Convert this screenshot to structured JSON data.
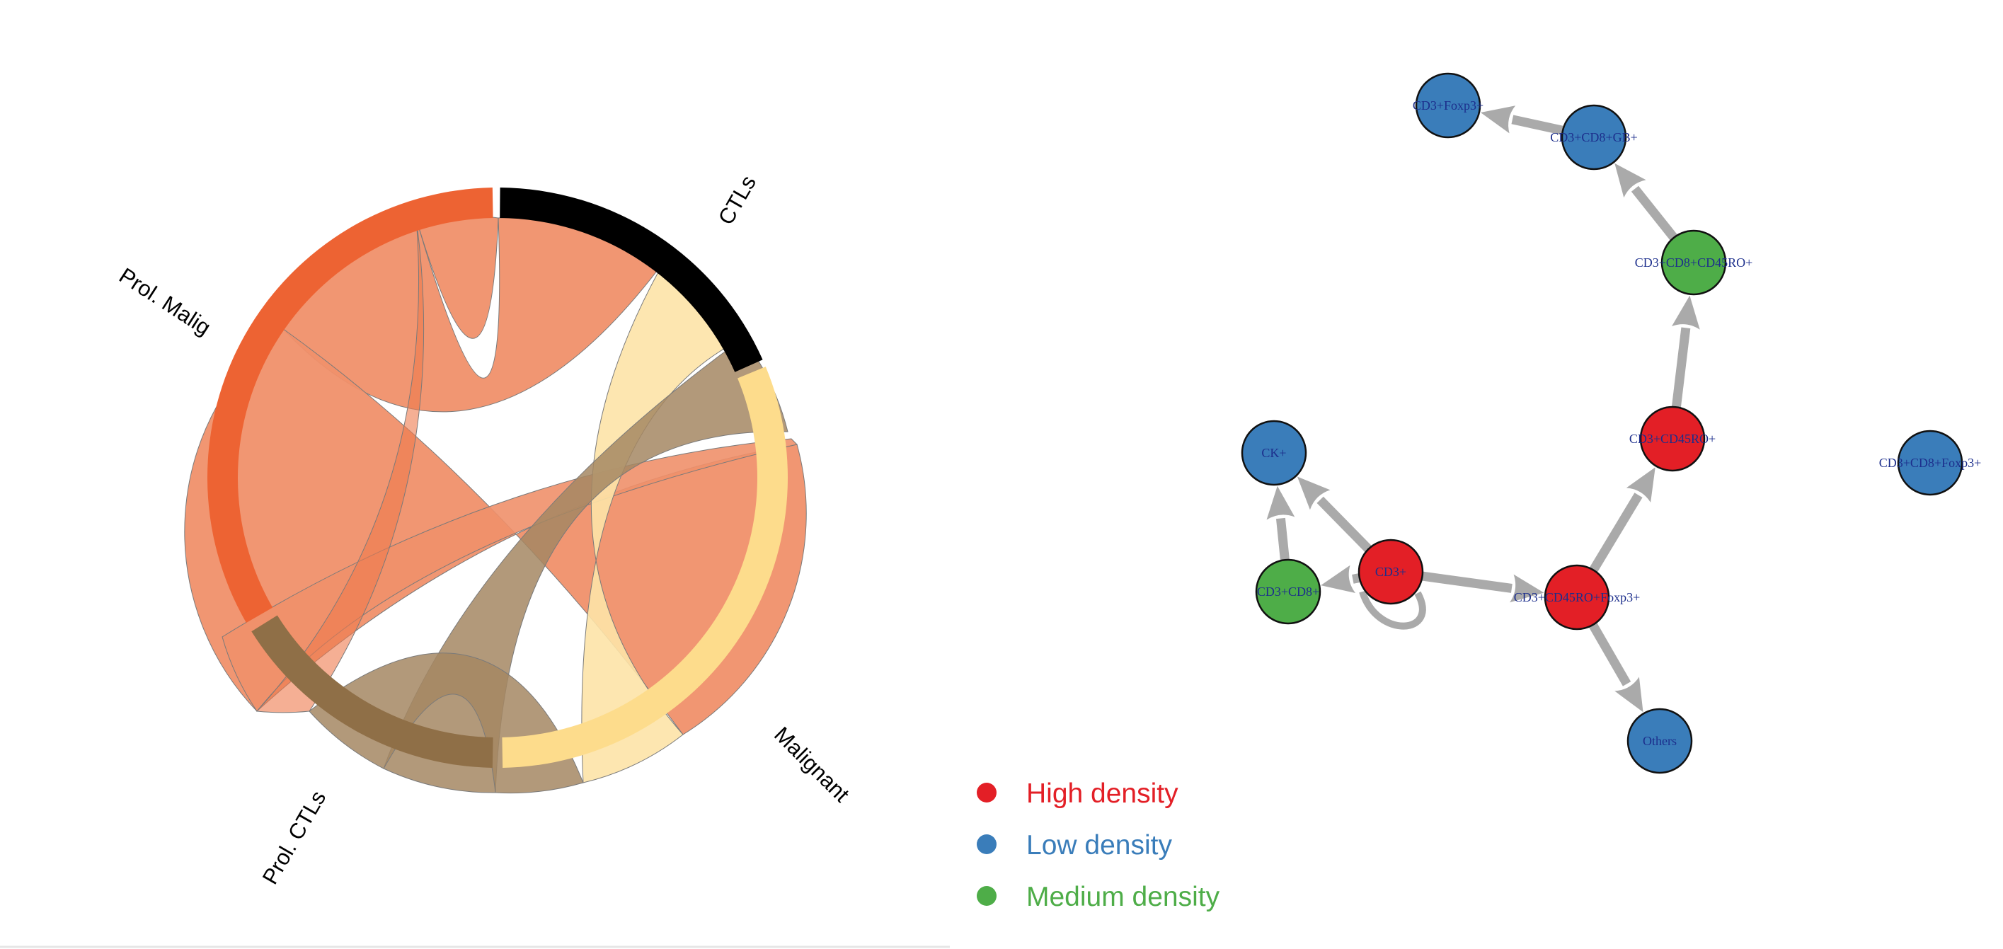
{
  "chord": {
    "groups": [
      {
        "id": "ctls",
        "label": "CTLs",
        "color": "#000000"
      },
      {
        "id": "malignant",
        "label": "Malignant",
        "color": "#fddc8c"
      },
      {
        "id": "prol_ctls",
        "label": "Prol. CTLs",
        "color": "#8f6f47"
      },
      {
        "id": "prol_malig",
        "label": "Prol. Malig",
        "color": "#ed6333"
      }
    ],
    "ribbon_colors": {
      "prol_malig": "#f0906a",
      "malignant": "#fde3a7",
      "prol_ctls": "#a48763"
    }
  },
  "network": {
    "density_colors": {
      "high": "#e31f26",
      "low": "#3a7dba",
      "medium": "#4ead48"
    },
    "nodes": [
      {
        "id": "cd3_foxp3",
        "label": "CD3+Foxp3+",
        "density": "low"
      },
      {
        "id": "cd3_cd8_gb",
        "label": "CD3+CD8+GB+",
        "density": "low"
      },
      {
        "id": "cd3_cd8_cd45ro",
        "label": "CD3+CD8+CD45RO+",
        "density": "medium"
      },
      {
        "id": "cd3_cd45ro",
        "label": "CD3+CD45RO+",
        "density": "high"
      },
      {
        "id": "ck",
        "label": "CK+",
        "density": "low"
      },
      {
        "id": "cd3",
        "label": "CD3+",
        "density": "high"
      },
      {
        "id": "cd3_cd8",
        "label": "CD3+CD8+",
        "density": "medium"
      },
      {
        "id": "cd3_cd45ro_foxp3",
        "label": "CD3+CD45RO+Foxp3+",
        "density": "high"
      },
      {
        "id": "others",
        "label": "Others",
        "density": "low"
      },
      {
        "id": "cd3_cd8_foxp3",
        "label": "CD3+CD8+Foxp3+",
        "density": "low"
      }
    ],
    "edges": [
      {
        "from": "cd3_cd8_gb",
        "to": "cd3_foxp3"
      },
      {
        "from": "cd3_cd8_cd45ro",
        "to": "cd3_cd8_gb"
      },
      {
        "from": "cd3_cd45ro",
        "to": "cd3_cd8_cd45ro"
      },
      {
        "from": "cd3_cd45ro_foxp3",
        "to": "cd3_cd45ro"
      },
      {
        "from": "cd3",
        "to": "cd3_cd45ro_foxp3"
      },
      {
        "from": "cd3_cd45ro_foxp3",
        "to": "others"
      },
      {
        "from": "cd3_cd8",
        "to": "ck"
      },
      {
        "from": "cd3",
        "to": "ck"
      },
      {
        "from": "cd3",
        "to": "cd3_cd8"
      }
    ]
  },
  "legend": {
    "items": [
      {
        "label": "High density",
        "density": "high"
      },
      {
        "label": "Low density",
        "density": "low"
      },
      {
        "label": "Medium density",
        "density": "medium"
      }
    ]
  }
}
